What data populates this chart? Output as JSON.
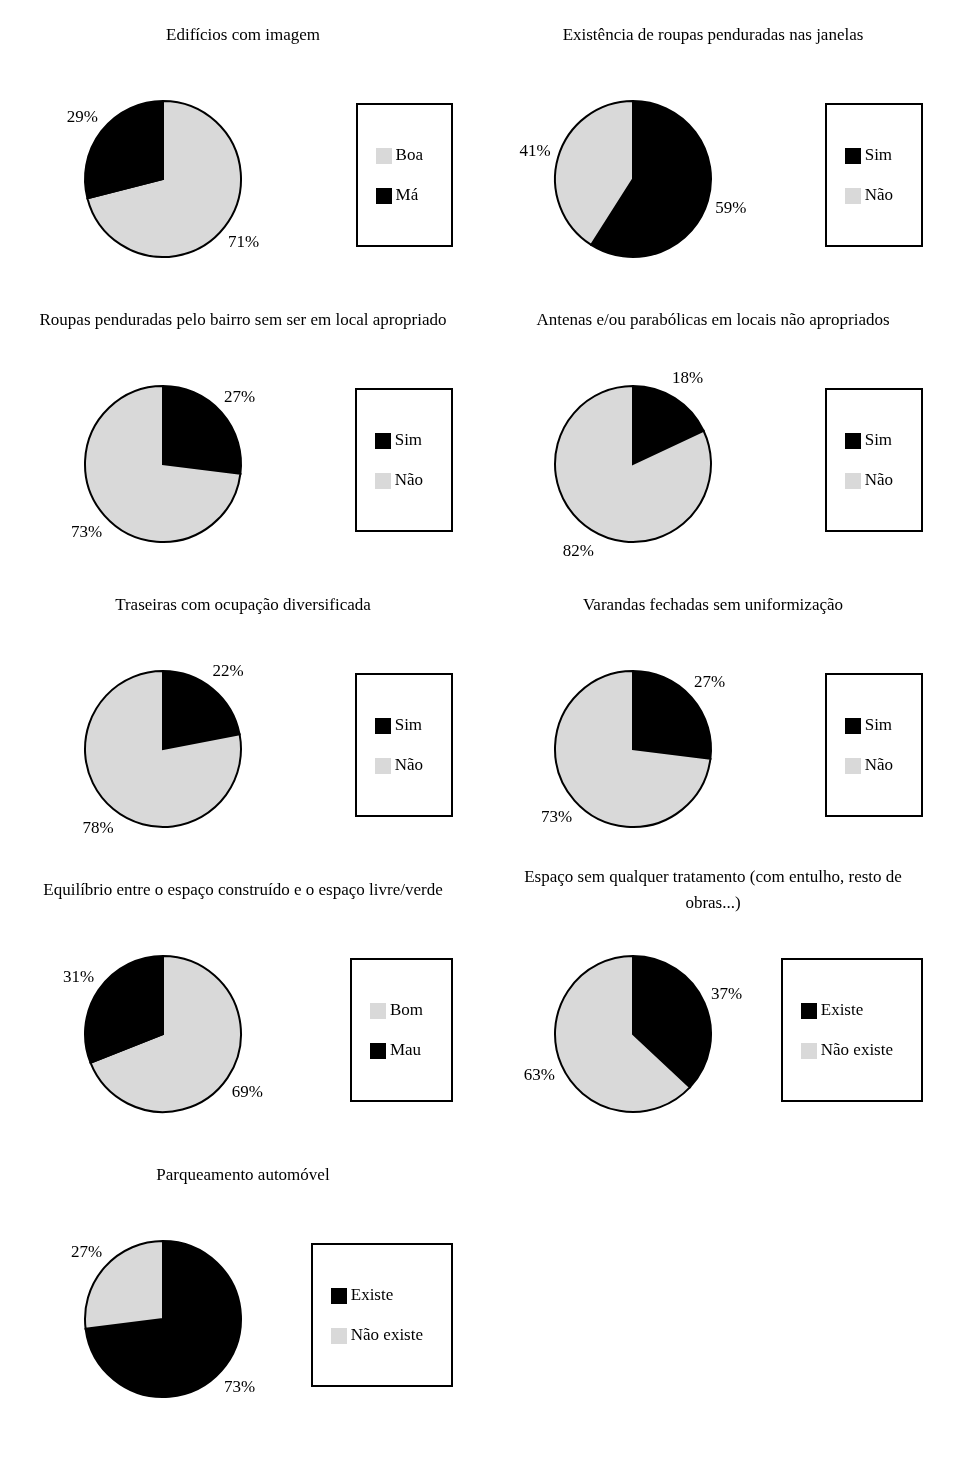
{
  "chart_data": [
    {
      "type": "pie",
      "title": "Edifícios com imagem",
      "categories": [
        "Boa",
        "Má"
      ],
      "values": [
        71,
        29
      ],
      "colors": [
        "#d9d9d9",
        "#000000"
      ],
      "value_labels": [
        "71%",
        "29%"
      ],
      "legend": "right"
    },
    {
      "type": "pie",
      "title": "Existência de roupas penduradas nas janelas",
      "categories": [
        "Sim",
        "Não"
      ],
      "values": [
        59,
        41
      ],
      "colors": [
        "#000000",
        "#d9d9d9"
      ],
      "value_labels": [
        "59%",
        "41%"
      ],
      "legend": "right"
    },
    {
      "type": "pie",
      "title": "Roupas penduradas pelo bairro sem ser em local apropriado",
      "categories": [
        "Sim",
        "Não"
      ],
      "values": [
        27,
        73
      ],
      "colors": [
        "#000000",
        "#d9d9d9"
      ],
      "value_labels": [
        "27%",
        "73%"
      ],
      "legend": "right"
    },
    {
      "type": "pie",
      "title": "Antenas e/ou parabólicas em locais não apropriados",
      "categories": [
        "Sim",
        "Não"
      ],
      "values": [
        18,
        82
      ],
      "colors": [
        "#000000",
        "#d9d9d9"
      ],
      "value_labels": [
        "18%",
        "82%"
      ],
      "legend": "right"
    },
    {
      "type": "pie",
      "title": "Traseiras com ocupação diversificada",
      "categories": [
        "Sim",
        "Não"
      ],
      "values": [
        22,
        78
      ],
      "colors": [
        "#000000",
        "#d9d9d9"
      ],
      "value_labels": [
        "22%",
        "78%"
      ],
      "legend": "right"
    },
    {
      "type": "pie",
      "title": "Varandas fechadas sem uniformização",
      "categories": [
        "Sim",
        "Não"
      ],
      "values": [
        27,
        73
      ],
      "colors": [
        "#000000",
        "#d9d9d9"
      ],
      "value_labels": [
        "27%",
        "73%"
      ],
      "legend": "right"
    },
    {
      "type": "pie",
      "title": "Equilíbrio entre o espaço construído e o espaço livre/verde",
      "categories": [
        "Bom",
        "Mau"
      ],
      "values": [
        69,
        31
      ],
      "colors": [
        "#d9d9d9",
        "#000000"
      ],
      "value_labels": [
        "69%",
        "31%"
      ],
      "legend": "right"
    },
    {
      "type": "pie",
      "title": "Espaço sem qualquer tratamento (com entulho, resto de obras...)",
      "categories": [
        "Existe",
        "Não existe"
      ],
      "values": [
        37,
        63
      ],
      "colors": [
        "#000000",
        "#d9d9d9"
      ],
      "value_labels": [
        "37%",
        "63%"
      ],
      "legend": "right"
    },
    {
      "type": "pie",
      "title": "Parqueamento automóvel",
      "categories": [
        "Existe",
        "Não existe"
      ],
      "values": [
        73,
        27
      ],
      "colors": [
        "#000000",
        "#d9d9d9"
      ],
      "value_labels": [
        "73%",
        "27%"
      ],
      "legend": "right"
    }
  ]
}
